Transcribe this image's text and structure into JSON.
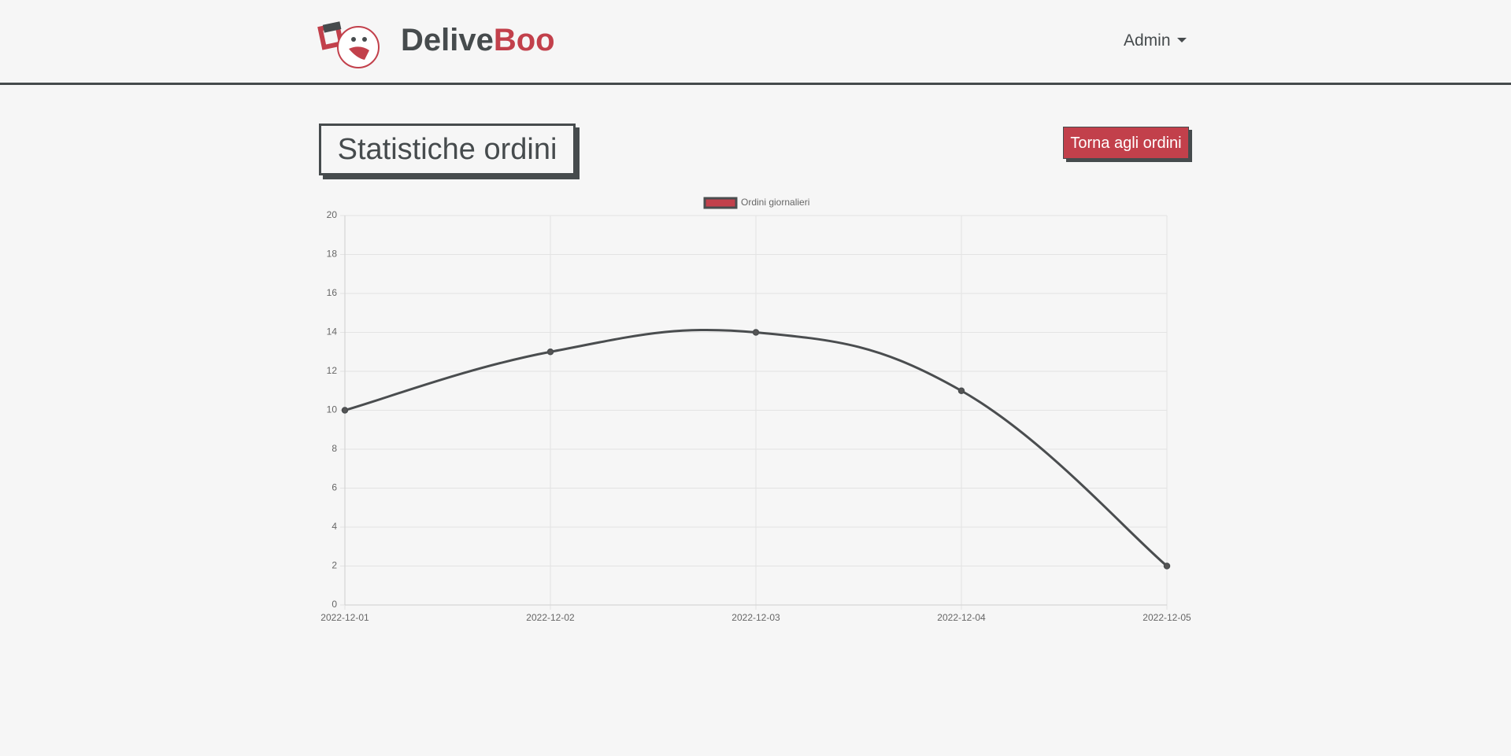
{
  "header": {
    "brand_part1": "Delive",
    "brand_part2": "Boo",
    "user_menu": "Admin"
  },
  "page": {
    "title": "Statistiche ordini",
    "back_button": "Torna agli ordini"
  },
  "chart_data": {
    "type": "line",
    "categories": [
      "2022-12-01",
      "2022-12-02",
      "2022-12-03",
      "2022-12-04",
      "2022-12-05"
    ],
    "series": [
      {
        "name": "Ordini giornalieri",
        "color": "#4a4d4f",
        "legend_color": "#c2404b",
        "values": [
          10,
          13,
          14,
          11,
          2
        ]
      }
    ],
    "ylim": [
      0,
      20
    ],
    "yticks": [
      0,
      2,
      4,
      6,
      8,
      10,
      12,
      14,
      16,
      18,
      20
    ],
    "grid": true,
    "legend": "top"
  }
}
